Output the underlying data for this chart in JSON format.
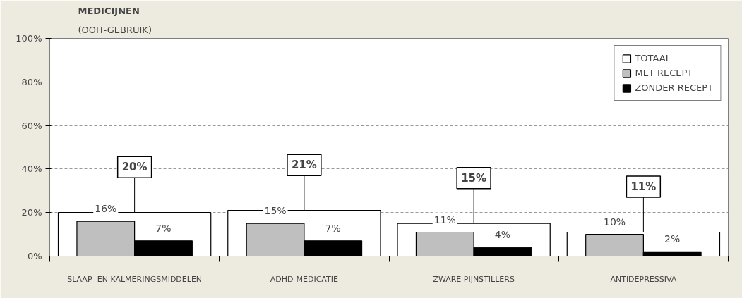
{
  "chart_data": {
    "type": "bar",
    "title": "MEDICIJNEN",
    "subtitle": "(OOIT-GEBRUIK)",
    "categories": [
      "SLAAP- EN KALMERINGSMIDDELEN",
      "ADHD-MEDICATIE",
      "ZWARE PIJNSTILLERS",
      "ANTIDEPRESSIVA"
    ],
    "series": [
      {
        "name": "TOTAAL",
        "color": "#ffffff",
        "values": [
          20,
          21,
          15,
          11
        ],
        "value_labels": [
          "20%",
          "21%",
          "15%",
          "11%"
        ]
      },
      {
        "name": "MET RECEPT",
        "color": "#bfbfbf",
        "values": [
          16,
          15,
          11,
          10
        ],
        "value_labels": [
          "16%",
          "15%",
          "11%",
          "10%"
        ]
      },
      {
        "name": "ZONDER RECEPT",
        "color": "#000000",
        "values": [
          7,
          7,
          4,
          2
        ],
        "value_labels": [
          "7%",
          "7%",
          "4%",
          "2%"
        ]
      }
    ],
    "ylim": [
      0,
      100
    ],
    "yticks": [
      {
        "value": 0,
        "label": "0%"
      },
      {
        "value": 20,
        "label": "20%"
      },
      {
        "value": 40,
        "label": "40%"
      },
      {
        "value": 60,
        "label": "60%"
      },
      {
        "value": 80,
        "label": "80%"
      },
      {
        "value": 100,
        "label": "100%"
      }
    ],
    "grid": "y",
    "legend": "top right"
  }
}
